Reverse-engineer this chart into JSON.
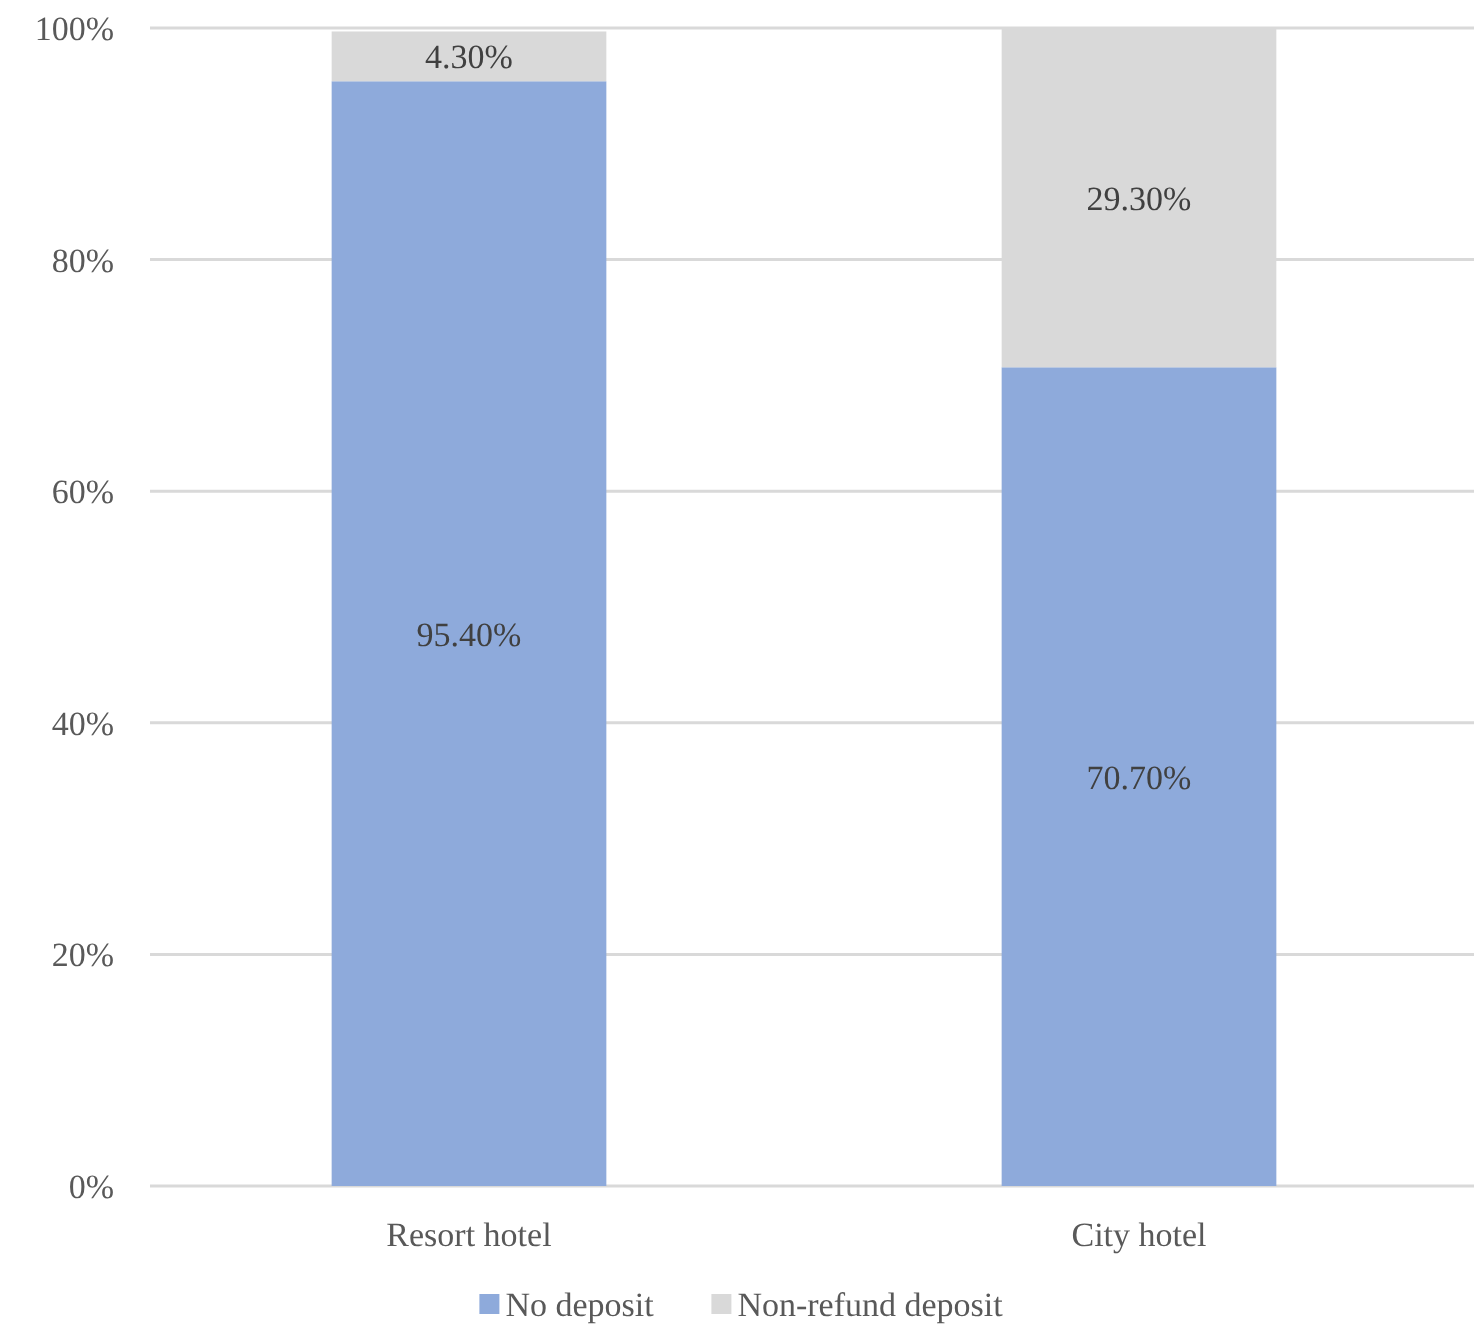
{
  "chart_data": {
    "type": "bar",
    "stacked": true,
    "categories": [
      "Resort hotel",
      "City hotel"
    ],
    "series": [
      {
        "name": "No deposit",
        "color": "#8eaadb",
        "values": [
          95.4,
          70.7
        ],
        "value_labels": [
          "95.40%",
          "70.70%"
        ]
      },
      {
        "name": "Non-refund deposit",
        "color": "#d9d9d9",
        "values": [
          4.3,
          29.3
        ],
        "value_labels": [
          "4.30%",
          "29.30%"
        ]
      }
    ],
    "ylim": [
      0,
      100
    ],
    "yticks": [
      {
        "value": 0,
        "label": "0%"
      },
      {
        "value": 20,
        "label": "20%"
      },
      {
        "value": 40,
        "label": "40%"
      },
      {
        "value": 60,
        "label": "60%"
      },
      {
        "value": 80,
        "label": "80%"
      },
      {
        "value": 100,
        "label": "100%"
      }
    ],
    "grid": "y",
    "legend": "bottom"
  }
}
